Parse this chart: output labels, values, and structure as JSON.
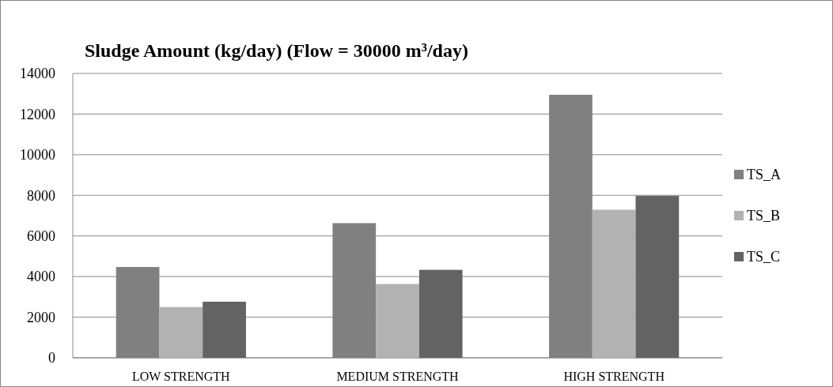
{
  "chart_data": {
    "type": "bar",
    "title": "Sludge Amount (kg/day) (Flow = 30000 m³/day)",
    "categories": [
      "LOW STRENGTH",
      "MEDIUM STRENGTH",
      "HIGH STRENGTH"
    ],
    "series": [
      {
        "name": "TS_A",
        "color": "#808080",
        "values": [
          4470,
          6630,
          12950
        ]
      },
      {
        "name": "TS_B",
        "color": "#b2b2b2",
        "values": [
          2500,
          3630,
          7290
        ]
      },
      {
        "name": "TS_C",
        "color": "#636363",
        "values": [
          2760,
          4330,
          7970
        ]
      }
    ],
    "ylim": [
      0,
      14000
    ],
    "yticks": [
      0,
      2000,
      4000,
      6000,
      8000,
      10000,
      12000,
      14000
    ],
    "grid": "y",
    "legend": "right"
  }
}
